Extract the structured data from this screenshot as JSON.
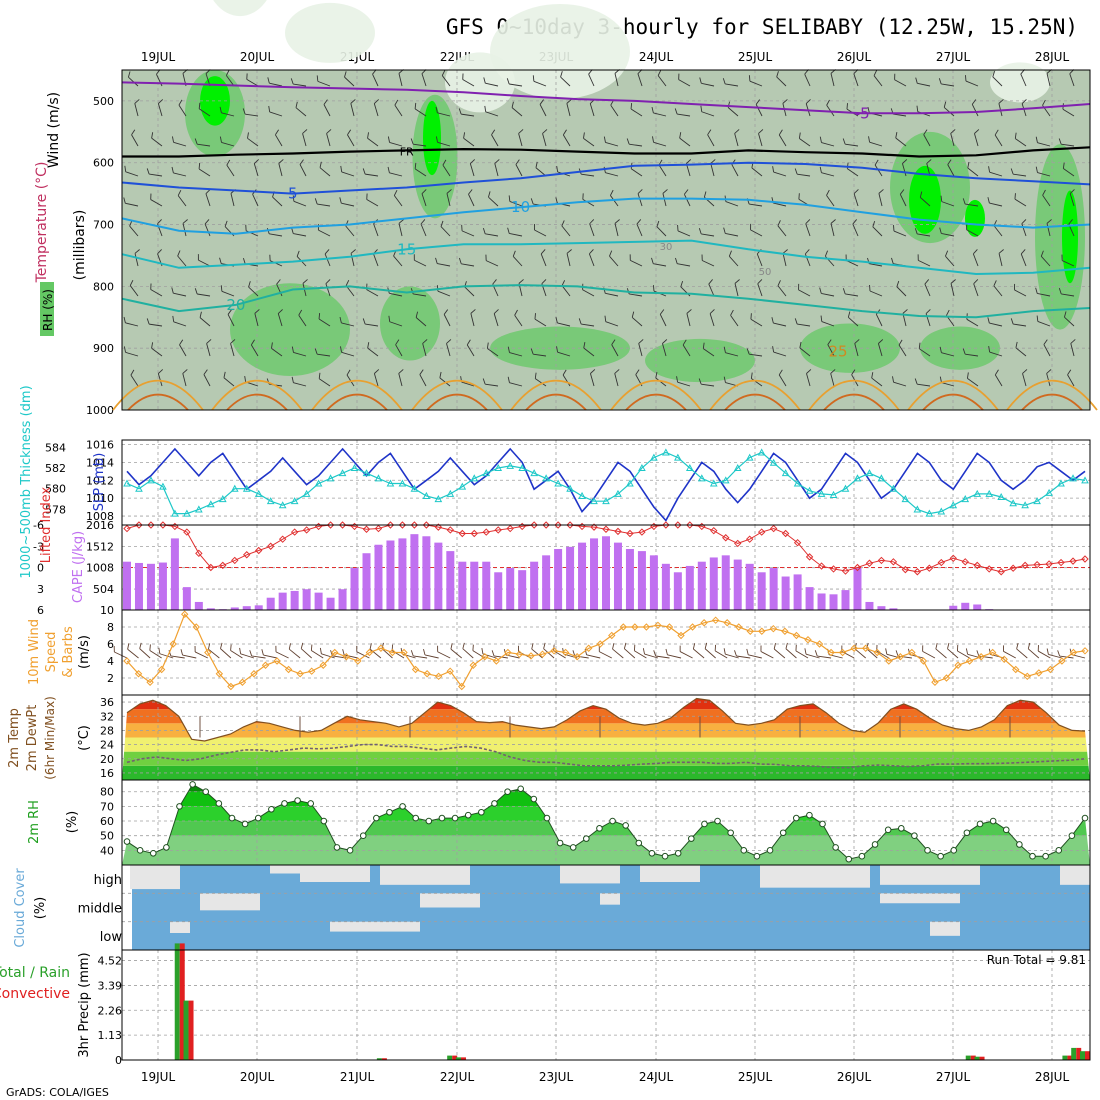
{
  "title": "GFS 0~10day 3-hourly for SELIBABY (12.25W, 15.25N)",
  "credit": "GrADS: COLA/IGES",
  "run_total_text": "Run Total = 9.81",
  "colors": {
    "rh_light": "#e8f2e6",
    "rh_mid": "#b6c9b2",
    "rh_green": "#64c864",
    "rh_bright": "#00f000",
    "slp": "#1f34c8",
    "thickness": "#1ec8c8",
    "lifted": "#e03030",
    "cape": "#c070f0",
    "wind_speed": "#f0a030",
    "barb": "#604030",
    "temp_line": "#805020",
    "dewpt_line": "#706070",
    "cloud": "#6aaad8",
    "cloud_clear": "#e6e6e6",
    "precip_total": "#2aa02a",
    "precip_conv": "#e02020",
    "grid": "#a0a0a0"
  },
  "chart_data": [
    {
      "type": "heatmap",
      "panel": "upper_air",
      "title": "RH (%) / Temperature (°C) / Wind (m/s)",
      "xlabel": "",
      "ylabel": "(millibars)",
      "x_tick_labels": [
        "19JUL",
        "20JUL",
        "21JUL",
        "22JUL",
        "23JUL",
        "24JUL",
        "25JUL",
        "26JUL",
        "27JUL",
        "28JUL"
      ],
      "y_ticks": [
        500,
        600,
        700,
        800,
        900,
        1000
      ],
      "ylim": [
        1000,
        450
      ],
      "axis_labels": [
        "RH (%)",
        "Temperature (°C)",
        "Wind (m/s)"
      ],
      "isotherm_labels": [
        "-5",
        "FR",
        "5",
        "10",
        "15",
        "20",
        "25"
      ],
      "rh_labels": [
        "30",
        "50"
      ],
      "isotherms": [
        {
          "label": "-5",
          "values": [
            470,
            472,
            475,
            478,
            480,
            482,
            486,
            492,
            497,
            500,
            505,
            510,
            515,
            520,
            520,
            518,
            512,
            505
          ]
        },
        {
          "label": "FR",
          "values": [
            590,
            590,
            587,
            585,
            582,
            580,
            578,
            579,
            582,
            585,
            585,
            580,
            583,
            585,
            590,
            588,
            580,
            575
          ]
        },
        {
          "label": "5",
          "values": [
            632,
            640,
            645,
            650,
            645,
            640,
            632,
            625,
            615,
            605,
            603,
            600,
            602,
            608,
            618,
            625,
            630,
            635
          ]
        },
        {
          "label": "10",
          "values": [
            690,
            710,
            715,
            705,
            700,
            690,
            680,
            672,
            664,
            658,
            658,
            660,
            668,
            680,
            692,
            700,
            705,
            700
          ]
        },
        {
          "label": "15",
          "values": [
            748,
            770,
            765,
            760,
            752,
            740,
            732,
            732,
            730,
            728,
            726,
            740,
            752,
            760,
            770,
            780,
            778,
            770
          ]
        },
        {
          "label": "20",
          "values": [
            820,
            840,
            830,
            805,
            800,
            810,
            800,
            798,
            800,
            810,
            812,
            820,
            830,
            840,
            848,
            850,
            840,
            835
          ]
        }
      ]
    },
    {
      "type": "line",
      "panel": "slp_thickness",
      "title": "",
      "y_left_label": "1000~500mb Thickness (dm)",
      "y_right_label": "SLP (mb)",
      "y_left_ticks": [
        578,
        580,
        582,
        584
      ],
      "y_right_ticks": [
        1008,
        1010,
        1012,
        1014,
        1016
      ],
      "series": [
        {
          "name": "SLP (mb)",
          "axis": "right",
          "values": [
            1013,
            1011.5,
            1012.5,
            1014,
            1015.5,
            1014,
            1012.5,
            1014,
            1015,
            1013,
            1011,
            1012,
            1013,
            1014.5,
            1013,
            1011.5,
            1012.5,
            1014,
            1015.5,
            1014,
            1012.5,
            1014,
            1015,
            1013,
            1011,
            1012,
            1013,
            1014.5,
            1013,
            1011.5,
            1012.5,
            1014,
            1015.5,
            1014,
            1011,
            1012,
            1013,
            1011,
            1008.5,
            1010,
            1012,
            1014,
            1013,
            1011,
            1009,
            1007.5,
            1010,
            1012,
            1014,
            1013,
            1011,
            1009.5,
            1011,
            1013,
            1015,
            1014,
            1012,
            1010,
            1011,
            1013,
            1015,
            1014,
            1012,
            1010,
            1011,
            1013,
            1015,
            1014,
            1012,
            1011,
            1013,
            1015,
            1014,
            1012,
            1011,
            1012,
            1013.5,
            1014,
            1013,
            1012,
            1013
          ]
        },
        {
          "name": "1000~500mb Thickness (dm)",
          "axis": "left",
          "values": [
            580.5,
            580,
            580.8,
            580.2,
            577.6,
            577.6,
            578,
            578.5,
            579,
            580,
            580,
            579.5,
            578.8,
            578.4,
            578.8,
            579.5,
            580.5,
            581,
            581.5,
            582,
            581.5,
            581,
            580.5,
            580.5,
            580,
            579.3,
            579,
            579.5,
            580.2,
            581,
            581.5,
            582,
            582.2,
            582,
            581.5,
            581,
            580.5,
            580,
            579.3,
            578.8,
            578.8,
            579.5,
            580.5,
            582,
            583,
            583.5,
            583,
            582,
            581,
            580.5,
            580.8,
            582,
            583,
            583.5,
            582.5,
            581.5,
            580.5,
            579.8,
            579.5,
            579.4,
            580,
            581,
            581.5,
            581,
            580,
            579,
            578,
            577.6,
            577.8,
            578.4,
            579,
            579.5,
            579.5,
            579.2,
            578.6,
            578.4,
            578.8,
            579.6,
            580.5,
            581,
            580.8
          ]
        }
      ]
    },
    {
      "type": "bar",
      "panel": "cape_lifted",
      "title": "",
      "y_left_label": "Lifted Index",
      "y_right_label": "CAPE (J/kg)",
      "y_left_ticks": [
        -6,
        -3,
        0,
        3,
        6
      ],
      "y_right_ticks": [
        10,
        504,
        1008,
        1512,
        2016
      ],
      "series": [
        {
          "name": "CAPE (J/kg)",
          "axis": "right",
          "values": [
            1150,
            1120,
            1100,
            1130,
            1700,
            550,
            200,
            50,
            30,
            70,
            100,
            120,
            300,
            420,
            460,
            500,
            420,
            300,
            500,
            1000,
            1350,
            1550,
            1650,
            1700,
            1800,
            1750,
            1600,
            1400,
            1150,
            1150,
            1150,
            900,
            1000,
            950,
            1150,
            1300,
            1450,
            1500,
            1600,
            1700,
            1750,
            1600,
            1450,
            1400,
            1300,
            1100,
            900,
            1050,
            1150,
            1250,
            1300,
            1200,
            1100,
            900,
            1000,
            800,
            850,
            550,
            400,
            380,
            480,
            1000,
            200,
            100,
            50,
            20,
            10,
            10,
            15,
            110,
            180,
            140,
            30,
            10,
            10,
            5,
            5,
            5,
            5,
            5,
            10
          ]
        },
        {
          "name": "Lifted Index",
          "axis": "left",
          "values": [
            -5.5,
            -6,
            -6,
            -6,
            -5.8,
            -5,
            -2,
            0,
            -0.3,
            -1,
            -1.8,
            -2.4,
            -3,
            -4,
            -5,
            -5.3,
            -5.8,
            -6,
            -6,
            -5.8,
            -5.4,
            -5.5,
            -6,
            -6,
            -6,
            -6,
            -5.7,
            -5.3,
            -4.8,
            -4.8,
            -5,
            -5.3,
            -5.5,
            -5.8,
            -6,
            -6,
            -6,
            -6,
            -5.8,
            -5.7,
            -5.4,
            -5.1,
            -4.8,
            -5,
            -5.8,
            -6,
            -6,
            -6,
            -5.8,
            -5.2,
            -4.2,
            -3.4,
            -4,
            -5,
            -5.5,
            -4.8,
            -3.5,
            -1.5,
            -0.2,
            0.2,
            0.5,
            0,
            -0.6,
            -1,
            -0.8,
            0.3,
            0.6,
            0.1,
            -0.7,
            -1.3,
            -0.8,
            -0.3,
            0.2,
            0.6,
            0.1,
            -0.3,
            -0.4,
            -0.5,
            -0.7,
            -0.9,
            -1.2
          ]
        }
      ]
    },
    {
      "type": "line",
      "panel": "wind10m",
      "title": "",
      "ylabel": "10m Wind Speed & Barbs (m/s)",
      "y_ticks": [
        2,
        4,
        6,
        8
      ],
      "ylim": [
        0,
        10
      ],
      "series": [
        {
          "name": "10m Wind Speed",
          "values": [
            4,
            2.5,
            1.5,
            3,
            6,
            9.5,
            8,
            5,
            2.5,
            1,
            1.5,
            2.5,
            3.5,
            4,
            3,
            2.5,
            2.8,
            3.5,
            5,
            4.5,
            4,
            5,
            5.5,
            5,
            5,
            3,
            2.5,
            2.2,
            2.8,
            1,
            3.5,
            4.5,
            4,
            5,
            4.8,
            4.6,
            4.8,
            5.2,
            5,
            4.5,
            5.5,
            6,
            7,
            8,
            8,
            8,
            8.2,
            8,
            7,
            8,
            8.5,
            8.8,
            8.5,
            8,
            7.5,
            7.5,
            7.8,
            7.5,
            7,
            6.5,
            6,
            5,
            5,
            5.5,
            5.5,
            5,
            4,
            4.5,
            5,
            4,
            1.5,
            2,
            3.5,
            4,
            4.5,
            5,
            4.2,
            3,
            2.2,
            2.6,
            3,
            4,
            5,
            5.2
          ]
        }
      ]
    },
    {
      "type": "area",
      "panel": "temp2m",
      "title": "",
      "ylabel": "2m Temp 2m DewPt (6hr Min/Max) (°C)",
      "y_ticks": [
        16,
        20,
        24,
        28,
        32,
        36
      ],
      "ylim": [
        14,
        38
      ],
      "series": [
        {
          "name": "2m Temp",
          "values": [
            33,
            35.5,
            36.5,
            35,
            32,
            25.5,
            25,
            26,
            27,
            29,
            30.5,
            30,
            29,
            28,
            27.5,
            28,
            30,
            32,
            31,
            30.5,
            30,
            29,
            30,
            33,
            36,
            35,
            33,
            30.5,
            30.2,
            30.5,
            29.5,
            29,
            28.5,
            29,
            31,
            33.5,
            35,
            34,
            31.5,
            30,
            29.5,
            30,
            31.5,
            34.5,
            37,
            36.5,
            33.5,
            30,
            29.5,
            30,
            31,
            34,
            35,
            35.5,
            33,
            30,
            28,
            27.5,
            30,
            34,
            35.5,
            34,
            31.5,
            29.5,
            28.5,
            28,
            29,
            31,
            35,
            36.5,
            36,
            33,
            29.5,
            28,
            27.8
          ]
        },
        {
          "name": "2m DewPt",
          "values": [
            19,
            20,
            20.5,
            20,
            19.5,
            20,
            21,
            21.8,
            22.5,
            22.5,
            22,
            22.5,
            23,
            22.8,
            23,
            23.5,
            24,
            24,
            23.5,
            23.5,
            23,
            22.5,
            23,
            23.5,
            23,
            22,
            20.5,
            19.5,
            19,
            19,
            18.5,
            18,
            18,
            18,
            18.2,
            18.5,
            18.7,
            19,
            19,
            19,
            18.7,
            18.7,
            19,
            18.5,
            18.4,
            18,
            18,
            17.8,
            17.5,
            17.5,
            18,
            18.2,
            18,
            17.8,
            18,
            18.5,
            18.5,
            18.6,
            18.6,
            18.7,
            18.8,
            19,
            19.2,
            19.4,
            19.6,
            20
          ]
        }
      ]
    },
    {
      "type": "area",
      "panel": "rh2m",
      "title": "",
      "ylabel": "2m RH (%)",
      "y_ticks": [
        40,
        50,
        60,
        70,
        80
      ],
      "ylim": [
        30,
        88
      ],
      "series": [
        {
          "name": "2m RH",
          "values": [
            46,
            40,
            38,
            42,
            70,
            85,
            80,
            72,
            62,
            58,
            62,
            68,
            72,
            74,
            72,
            60,
            42,
            40,
            50,
            62,
            66,
            70,
            62,
            60,
            62,
            62,
            64,
            66,
            72,
            80,
            82,
            75,
            62,
            45,
            42,
            48,
            55,
            60,
            57,
            45,
            38,
            36,
            38,
            48,
            58,
            60,
            52,
            40,
            36,
            40,
            52,
            62,
            64,
            58,
            42,
            34,
            36,
            44,
            54,
            55,
            50,
            40,
            36,
            40,
            52,
            58,
            60,
            54,
            44,
            36,
            36,
            40,
            50,
            62
          ]
        }
      ]
    },
    {
      "type": "heatmap",
      "panel": "cloud_cover",
      "title": "",
      "ylabel": "Cloud Cover (%)",
      "row_labels": [
        "high",
        "middle",
        "low"
      ]
    },
    {
      "type": "bar",
      "panel": "precip3hr",
      "title": "",
      "ylabel": "3hr Precip (mm)",
      "legend": [
        "Total / Rain",
        "Convective"
      ],
      "y_ticks": [
        0,
        1.13,
        2.26,
        3.39,
        4.52
      ],
      "ylim": [
        0,
        5.0
      ],
      "x_tick_labels": [
        "19JUL",
        "20JUL",
        "21JUL",
        "22JUL",
        "23JUL",
        "24JUL",
        "25JUL",
        "26JUL",
        "27JUL",
        "28JUL"
      ],
      "series": [
        {
          "name": "Total / Rain",
          "values": [
            0,
            0,
            0,
            0,
            0,
            0,
            5.3,
            2.7,
            0,
            0,
            0,
            0,
            0,
            0,
            0,
            0,
            0,
            0,
            0,
            0,
            0,
            0,
            0,
            0,
            0,
            0,
            0,
            0,
            0,
            0.08,
            0,
            0,
            0,
            0,
            0,
            0,
            0,
            0.2,
            0.12,
            0,
            0,
            0,
            0,
            0,
            0,
            0,
            0,
            0,
            0,
            0,
            0,
            0,
            0,
            0,
            0,
            0,
            0,
            0,
            0,
            0,
            0,
            0,
            0,
            0,
            0,
            0,
            0,
            0,
            0,
            0,
            0,
            0,
            0,
            0,
            0,
            0,
            0,
            0,
            0,
            0,
            0,
            0,
            0,
            0,
            0,
            0,
            0,
            0,
            0,
            0,
            0,
            0,
            0,
            0,
            0,
            0,
            0.2,
            0.15,
            0,
            0,
            0,
            0,
            0,
            0,
            0,
            0,
            0,
            0.2,
            0.55,
            0.4
          ]
        }
      ]
    }
  ]
}
